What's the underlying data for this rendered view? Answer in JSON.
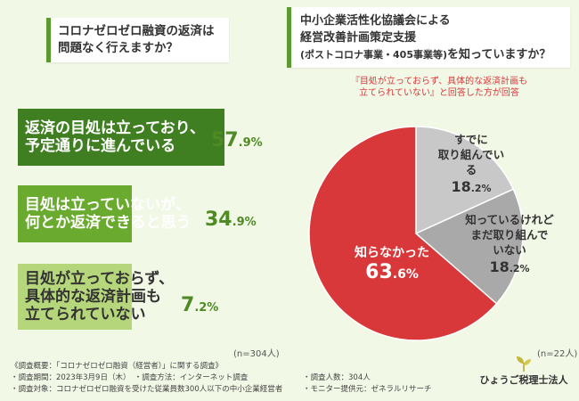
{
  "left_question": {
    "line1": "コロナゼロゼロ融資の返済は",
    "line2": "問題なく行えますか？"
  },
  "right_question": {
    "line1": "中小企業活性化協議会による",
    "line2": "経営改善計画策定支援",
    "line3_small": "(ポストコロナ事業・405事業等)",
    "line3_rest": "を知っていますか？"
  },
  "note": {
    "line1": "『目処が立っておらず、具体的な返済計画も",
    "line2": "立てられていない』と回答した方が回答"
  },
  "chart_data": [
    {
      "type": "bar",
      "title": "コロナゼロゼロ融資の返済は問題なく行えますか？",
      "categories": [
        "返済の目処は立っており、予定通りに進んでいる",
        "目処は立っていないが、何とか返済できると思う",
        "目処が立っておらず、具体的な返済計画も立てられていない"
      ],
      "values": [
        57.9,
        34.9,
        7.2
      ],
      "unit": "%",
      "n": "(n=304人)",
      "labels": [
        {
          "l1": "返済の目処は立っており、",
          "l2": "予定通りに進んでいる",
          "int": "57",
          "dec": ".9%"
        },
        {
          "l1": "目処は立っていないが、",
          "l2": "何とか返済できると思う",
          "int": "34",
          "dec": ".9%"
        },
        {
          "l1": "目処が立っておらず、",
          "l2": "具体的な返済計画も",
          "l3": "立てられていない",
          "int": "7",
          "dec": ".2%"
        }
      ],
      "colors": {
        "bar1": "#3f7f22",
        "bar2": "#6aaa2e",
        "bar3": "#b5d67a"
      }
    },
    {
      "type": "pie",
      "title": "中小企業活性化協議会による経営改善計画策定支援(ポストコロナ事業・405事業等)を知っていますか？",
      "slices": [
        {
          "label": "すでに取り組んでいる",
          "value": 18.2,
          "color": "#c8c8c8"
        },
        {
          "label": "知っているけれどまだ取り組んでいない",
          "value": 18.2,
          "color": "#a9a9a9"
        },
        {
          "label": "知らなかった",
          "value": 63.6,
          "color": "#d9383a"
        }
      ],
      "slice_text": [
        {
          "l1": "すでに",
          "l2": "取り組んでいる",
          "int": "18",
          "dec": ".2%"
        },
        {
          "l1": "知っているけれど",
          "l2": "まだ取り組んで",
          "l3": "いない",
          "int": "18",
          "dec": ".2%"
        },
        {
          "l1": "知らなかった",
          "int": "63",
          "dec": ".6%"
        }
      ],
      "n": "(n=22人)"
    }
  ],
  "footer": {
    "c1": "《調査概要：「コロナゼロゼロ融資（経営者）」に関する調査》",
    "c2": "・調査期間：2023年3月9日（木）　・調査方法：インターネット調査",
    "c3": "・調査対象：コロナゼロゼロ融資を受けた従業員数300人以下の中小企業経営者",
    "c4": "・調査人数：304人",
    "c5": "・モニター提供元：ゼネラルリサーチ"
  },
  "logo": {
    "text": "ひょうご税理士法人"
  }
}
